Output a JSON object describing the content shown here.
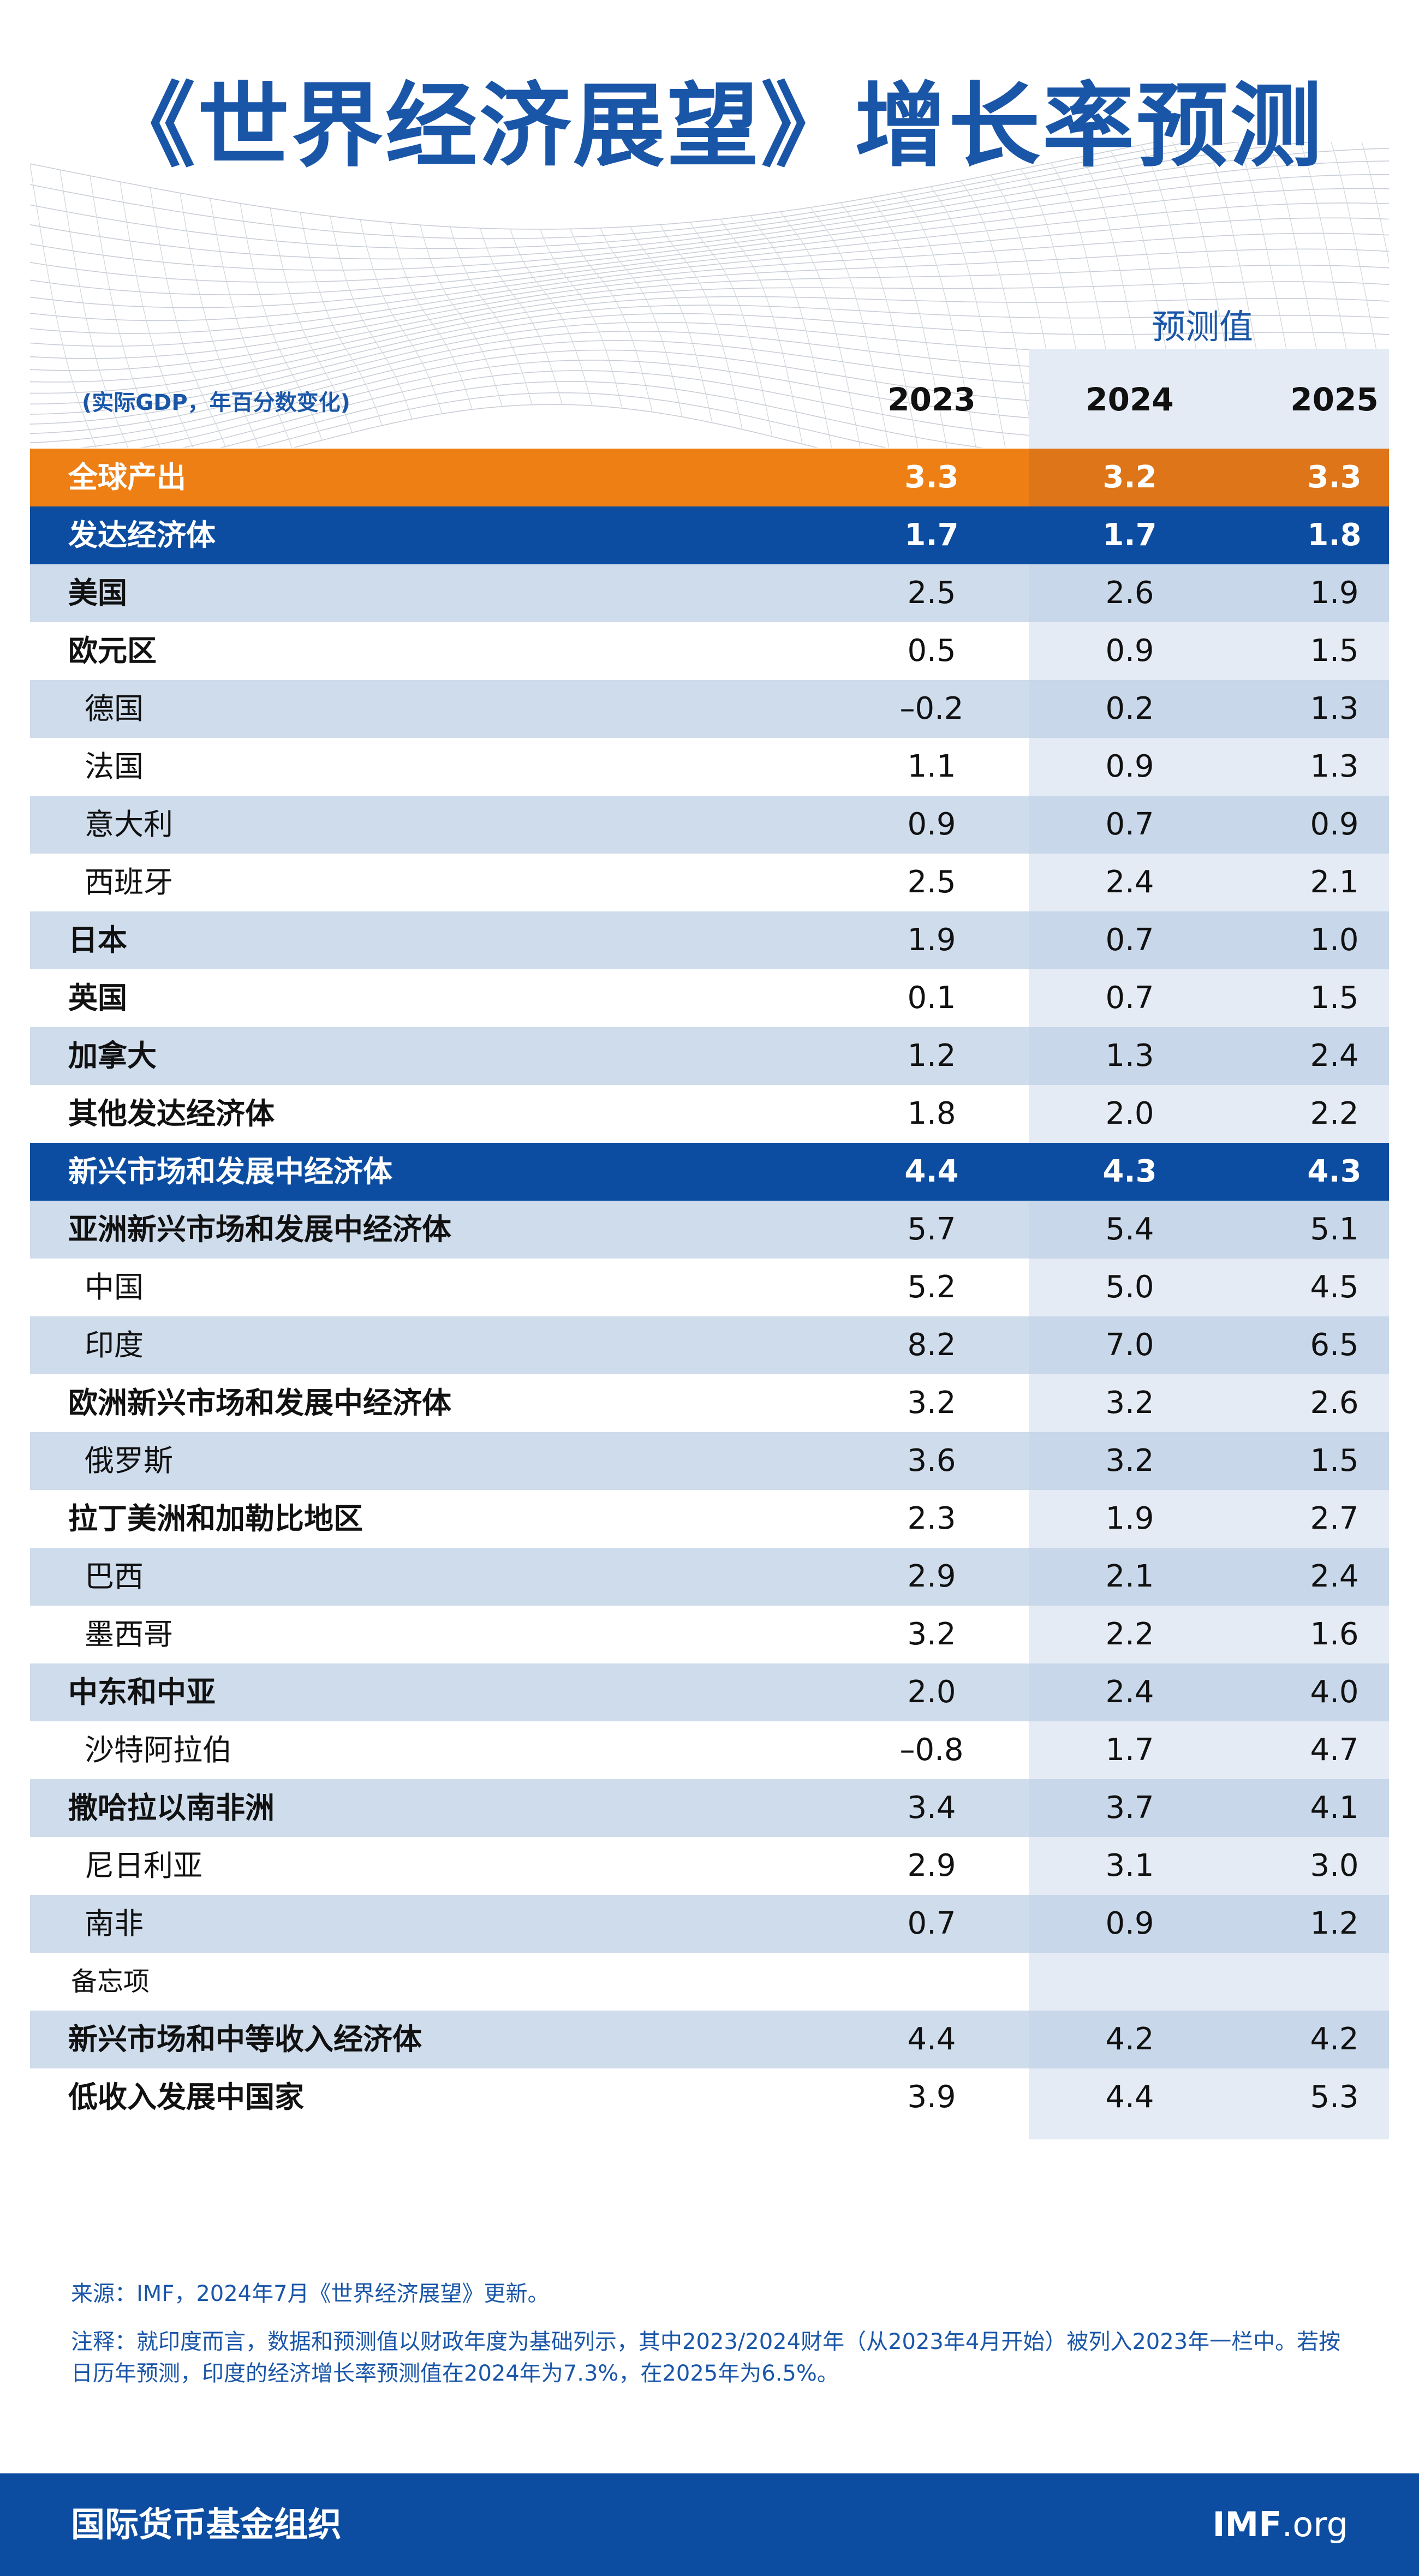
{
  "title": "《世界经济展望》增长率预测",
  "forecast_label": "预测值",
  "subtitle": "(实际GDP，年百分数变化)",
  "years": [
    "2023",
    "2024",
    "2025"
  ],
  "colors": {
    "title_blue": "#1a56a8",
    "world_orange": "#ee7f14",
    "group_navy": "#0c4da1",
    "band": "#c9d7e8",
    "forecast_shade": "#e4ebf5"
  },
  "chart_data": {
    "type": "table",
    "title": "《世界经济展望》增长率预测",
    "subtitle": "(实际GDP，年百分数变化)",
    "columns": [
      "2023",
      "2024",
      "2025"
    ],
    "forecast_columns": [
      "2024",
      "2025"
    ],
    "rows": [
      {
        "label": "全球产出",
        "values": [
          "3.3",
          "3.2",
          "3.3"
        ],
        "style": "world",
        "indent": false
      },
      {
        "label": "发达经济体",
        "values": [
          "1.7",
          "1.7",
          "1.8"
        ],
        "style": "group",
        "indent": false
      },
      {
        "label": "美国",
        "values": [
          "2.5",
          "2.6",
          "1.9"
        ],
        "style": "band",
        "indent": false
      },
      {
        "label": "欧元区",
        "values": [
          "0.5",
          "0.9",
          "1.5"
        ],
        "style": "plain",
        "indent": false
      },
      {
        "label": "德国",
        "values": [
          "–0.2",
          "0.2",
          "1.3"
        ],
        "style": "band",
        "indent": true
      },
      {
        "label": "法国",
        "values": [
          "1.1",
          "0.9",
          "1.3"
        ],
        "style": "plain",
        "indent": true
      },
      {
        "label": "意大利",
        "values": [
          "0.9",
          "0.7",
          "0.9"
        ],
        "style": "band",
        "indent": true
      },
      {
        "label": "西班牙",
        "values": [
          "2.5",
          "2.4",
          "2.1"
        ],
        "style": "plain",
        "indent": true
      },
      {
        "label": "日本",
        "values": [
          "1.9",
          "0.7",
          "1.0"
        ],
        "style": "band",
        "indent": false
      },
      {
        "label": "英国",
        "values": [
          "0.1",
          "0.7",
          "1.5"
        ],
        "style": "plain",
        "indent": false
      },
      {
        "label": "加拿大",
        "values": [
          "1.2",
          "1.3",
          "2.4"
        ],
        "style": "band",
        "indent": false
      },
      {
        "label": "其他发达经济体",
        "values": [
          "1.8",
          "2.0",
          "2.2"
        ],
        "style": "plain",
        "indent": false
      },
      {
        "label": "新兴市场和发展中经济体",
        "values": [
          "4.4",
          "4.3",
          "4.3"
        ],
        "style": "group",
        "indent": false
      },
      {
        "label": "亚洲新兴市场和发展中经济体",
        "values": [
          "5.7",
          "5.4",
          "5.1"
        ],
        "style": "band",
        "indent": false
      },
      {
        "label": "中国",
        "values": [
          "5.2",
          "5.0",
          "4.5"
        ],
        "style": "plain",
        "indent": true
      },
      {
        "label": "印度",
        "values": [
          "8.2",
          "7.0",
          "6.5"
        ],
        "style": "band",
        "indent": true
      },
      {
        "label": "欧洲新兴市场和发展中经济体",
        "values": [
          "3.2",
          "3.2",
          "2.6"
        ],
        "style": "plain",
        "indent": false
      },
      {
        "label": "俄罗斯",
        "values": [
          "3.6",
          "3.2",
          "1.5"
        ],
        "style": "band",
        "indent": true
      },
      {
        "label": "拉丁美洲和加勒比地区",
        "values": [
          "2.3",
          "1.9",
          "2.7"
        ],
        "style": "plain",
        "indent": false
      },
      {
        "label": "巴西",
        "values": [
          "2.9",
          "2.1",
          "2.4"
        ],
        "style": "band",
        "indent": true
      },
      {
        "label": "墨西哥",
        "values": [
          "3.2",
          "2.2",
          "1.6"
        ],
        "style": "plain",
        "indent": true
      },
      {
        "label": "中东和中亚",
        "values": [
          "2.0",
          "2.4",
          "4.0"
        ],
        "style": "band",
        "indent": false
      },
      {
        "label": "沙特阿拉伯",
        "values": [
          "–0.8",
          "1.7",
          "4.7"
        ],
        "style": "plain",
        "indent": true
      },
      {
        "label": "撒哈拉以南非洲",
        "values": [
          "3.4",
          "3.7",
          "4.1"
        ],
        "style": "band",
        "indent": false
      },
      {
        "label": "尼日利亚",
        "values": [
          "2.9",
          "3.1",
          "3.0"
        ],
        "style": "plain",
        "indent": true
      },
      {
        "label": "南非",
        "values": [
          "0.7",
          "0.9",
          "1.2"
        ],
        "style": "band",
        "indent": true
      },
      {
        "label": "备忘项",
        "values": [
          "",
          "",
          ""
        ],
        "style": "memo",
        "indent": false
      },
      {
        "label": "新兴市场和中等收入经济体",
        "values": [
          "4.4",
          "4.2",
          "4.2"
        ],
        "style": "band",
        "indent": false
      },
      {
        "label": "低收入发展中国家",
        "values": [
          "3.9",
          "4.4",
          "5.3"
        ],
        "style": "plain",
        "indent": false
      }
    ]
  },
  "source": "来源：IMF，2024年7月《世界经济展望》更新。",
  "note": "注释：就印度而言，数据和预测值以财政年度为基础列示，其中2023/2024财年（从2023年4月开始）被列入2023年一栏中。若按日历年预测，印度的经济增长率预测值在2024年为7.3%，在2025年为6.5%。",
  "footer": {
    "org": "国际货币基金组织",
    "site_main": "IMF",
    "site_tld": ".org"
  }
}
